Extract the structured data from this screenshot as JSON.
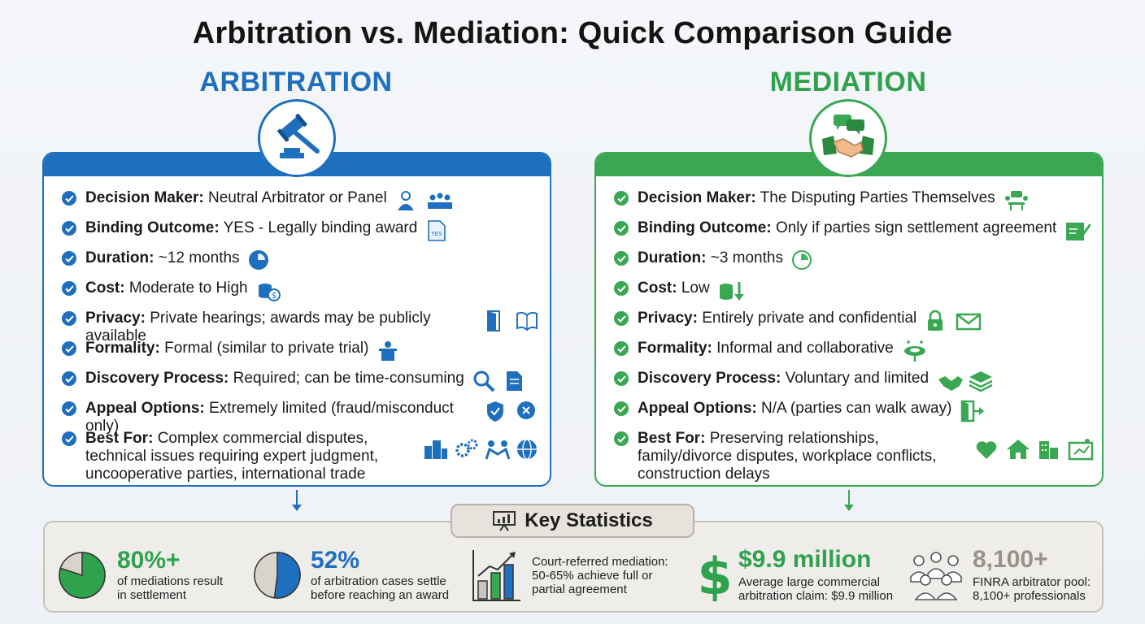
{
  "page": {
    "title": "Arbitration vs. Mediation: Quick Comparison Guide"
  },
  "colors": {
    "arbitration": "#1f6fbf",
    "mediation": "#3aa853",
    "stats_green": "#2fa24d",
    "stats_blue": "#1f6fbf"
  },
  "arbitration": {
    "heading": "ARBITRATION",
    "emblem_icon": "gavel-icon",
    "rows": [
      {
        "label": "Decision Maker:",
        "value": "Neutral Arbitrator or Panel",
        "icons": [
          "arbitrator-icon",
          "panel-icon"
        ]
      },
      {
        "label": "Binding Outcome:",
        "value": "YES - Legally binding award",
        "icons": [
          "yes-document-icon"
        ],
        "icon_text": "YES"
      },
      {
        "label": "Duration:",
        "value": "~12 months",
        "icons": [
          "clock-icon"
        ]
      },
      {
        "label": "Cost:",
        "value": "Moderate to High",
        "icons": [
          "coins-icon"
        ]
      },
      {
        "label": "Privacy:",
        "value": "Private hearings; awards may be publicly available",
        "icons": [
          "door-icon",
          "book-icon"
        ]
      },
      {
        "label": "Formality:",
        "value": "Formal (similar to private trial)",
        "icons": [
          "podium-icon"
        ]
      },
      {
        "label": "Discovery Process:",
        "value": "Required; can be time-consuming",
        "icons": [
          "magnifier-icon",
          "document-icon"
        ]
      },
      {
        "label": "Appeal Options:",
        "value": "Extremely limited (fraud/misconduct only)",
        "icons": [
          "shield-icon",
          "cancel-icon"
        ]
      },
      {
        "label": "Best For:",
        "value": "Complex commercial disputes, technical issues requiring expert judgment, uncooperative parties, international trade",
        "icons": [
          "buildings-icon",
          "gears-icon",
          "handshake-dispute-icon",
          "globe-icon"
        ]
      }
    ]
  },
  "mediation": {
    "heading": "MEDIATION",
    "emblem_icon": "handshake-icon",
    "rows": [
      {
        "label": "Decision Maker:",
        "value": "The Disputing Parties Themselves",
        "icons": [
          "meeting-icon"
        ]
      },
      {
        "label": "Binding Outcome:",
        "value": "Only if parties sign settlement agreement",
        "icons": [
          "signing-icon"
        ]
      },
      {
        "label": "Duration:",
        "value": "~3 months",
        "icons": [
          "clock-icon"
        ]
      },
      {
        "label": "Cost:",
        "value": "Low",
        "icons": [
          "coins-down-icon"
        ]
      },
      {
        "label": "Privacy:",
        "value": "Entirely private and confidential",
        "icons": [
          "lock-icon",
          "envelope-icon"
        ]
      },
      {
        "label": "Formality:",
        "value": "Informal and collaborative",
        "icons": [
          "round-table-icon"
        ]
      },
      {
        "label": "Discovery Process:",
        "value": "Voluntary and limited",
        "icons": [
          "handshake-icon",
          "stack-icon"
        ]
      },
      {
        "label": "Appeal Options:",
        "value": "N/A (parties can walk away)",
        "icons": [
          "exit-door-icon"
        ]
      },
      {
        "label": "Best For:",
        "value": "Preserving relationships, family/divorce disputes, workplace conflicts, construction delays",
        "icons": [
          "heart-icon",
          "house-icon",
          "office-icon",
          "blueprint-icon"
        ]
      }
    ]
  },
  "stats": {
    "header": "Key Statistics",
    "header_icon": "presentation-icon",
    "items": [
      {
        "value": "80%+",
        "caption": "of mediations result in settlement",
        "fraction": 0.8,
        "color": "#2fa24d",
        "icon": "pie-chart-icon"
      },
      {
        "value": "52%",
        "caption": "of arbitration cases settle before reaching an award",
        "fraction": 0.52,
        "color": "#1f6fbf",
        "icon": "pie-chart-icon"
      },
      {
        "value": "",
        "caption": "Court-referred mediation: 50-65% achieve full or partial agreement",
        "color": "#2fa24d",
        "icon": "bar-growth-icon"
      },
      {
        "value": "$9.9 million",
        "caption": "Average large commercial arbitration claim: $9.9 million",
        "color": "#2fa24d",
        "icon": "dollar-icon"
      },
      {
        "value": "8,100+",
        "caption": "FINRA arbitrator pool: 8,100+ professionals",
        "color": "#9a9288",
        "icon": "crowd-icon"
      }
    ]
  }
}
